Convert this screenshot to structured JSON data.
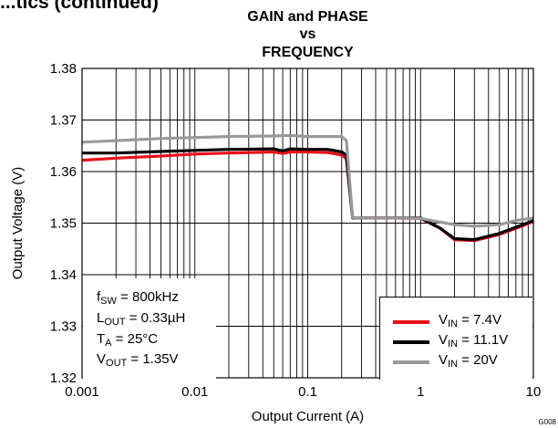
{
  "page_heading": "...tics (continued)",
  "title_lines": [
    "GAIN and PHASE",
    "vs",
    "FREQUENCY"
  ],
  "figure_id": "G008",
  "conditions": [
    {
      "main": "f",
      "sub": "SW",
      "rest": " = 800kHz"
    },
    {
      "main": "L",
      "sub": "OUT",
      "rest": " = 0.33µH"
    },
    {
      "main": "T",
      "sub": "A",
      "rest": " = 25°C"
    },
    {
      "main": "V",
      "sub": "OUT",
      "rest": " = 1.35V"
    }
  ],
  "chart_data": {
    "type": "line",
    "xlabel": "Output Current (A)",
    "ylabel": "Output Voltage (V)",
    "xscale": "log",
    "xlim": [
      0.001,
      10
    ],
    "ylim": [
      1.32,
      1.38
    ],
    "x_ticks": [
      "0.001",
      "0.01",
      "0.1",
      "1",
      "10"
    ],
    "y_ticks": [
      "1.32",
      "1.33",
      "1.34",
      "1.35",
      "1.36",
      "1.37",
      "1.38"
    ],
    "grid": true,
    "legend_position": "bottom-right",
    "series": [
      {
        "name_main": "V",
        "name_sub": "IN",
        "name_rest": " = 7.4V",
        "color": "#e8101a",
        "x": [
          0.001,
          0.002,
          0.005,
          0.01,
          0.02,
          0.05,
          0.06,
          0.07,
          0.1,
          0.15,
          0.2,
          0.22,
          0.25,
          0.3,
          0.5,
          1,
          1.5,
          2,
          3,
          5,
          7,
          10
        ],
        "y": [
          1.3622,
          1.3626,
          1.363,
          1.3634,
          1.3636,
          1.3638,
          1.3635,
          1.3638,
          1.3638,
          1.3637,
          1.3632,
          1.3625,
          1.3511,
          1.351,
          1.351,
          1.3509,
          1.349,
          1.3468,
          1.3466,
          1.3478,
          1.349,
          1.3503
        ]
      },
      {
        "name_main": "V",
        "name_sub": "IN",
        "name_rest": " = 11.1V",
        "color": "#000000",
        "x": [
          0.001,
          0.002,
          0.005,
          0.01,
          0.02,
          0.05,
          0.06,
          0.07,
          0.1,
          0.15,
          0.2,
          0.22,
          0.25,
          0.3,
          0.5,
          1,
          1.5,
          2,
          3,
          5,
          7,
          10
        ],
        "y": [
          1.3636,
          1.3636,
          1.3639,
          1.3641,
          1.3643,
          1.3644,
          1.364,
          1.3644,
          1.3643,
          1.3643,
          1.3638,
          1.3632,
          1.351,
          1.351,
          1.351,
          1.351,
          1.349,
          1.347,
          1.3468,
          1.348,
          1.3492,
          1.3505
        ]
      },
      {
        "name_main": "V",
        "name_sub": "IN",
        "name_rest": " = 20V",
        "color": "#999999",
        "x": [
          0.001,
          0.002,
          0.005,
          0.01,
          0.02,
          0.05,
          0.07,
          0.1,
          0.15,
          0.2,
          0.22,
          0.25,
          0.3,
          0.5,
          1,
          1.5,
          2,
          3,
          5,
          7,
          10
        ],
        "y": [
          1.3657,
          1.366,
          1.3664,
          1.3666,
          1.3668,
          1.3669,
          1.367,
          1.3668,
          1.3668,
          1.3668,
          1.366,
          1.3511,
          1.351,
          1.351,
          1.3509,
          1.3502,
          1.3497,
          1.3494,
          1.3497,
          1.3505,
          1.351
        ]
      }
    ]
  }
}
